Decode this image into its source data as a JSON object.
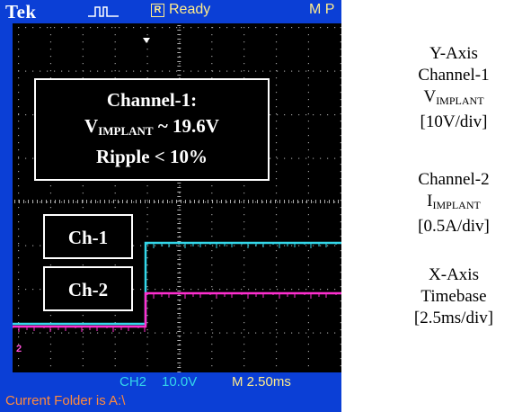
{
  "scope": {
    "brand": "Tek",
    "status": "Ready",
    "status_icon": "R",
    "position_label": "M P",
    "channel_readout": "CH2",
    "channel_scale": "10.0V",
    "timebase": "M 2.50ms",
    "folder": "Current Folder is A:\\",
    "ground_marker": "2",
    "colors": {
      "frame": "#0b3fd6",
      "ch1": "#33d7ea",
      "ch2": "#ff2fd0",
      "status": "#ffeb8c",
      "folder": "#ff8a3d"
    }
  },
  "annotations": {
    "main": {
      "line1": "Channel-1:",
      "line2_v": "V",
      "line2_sub": "IMPLANT",
      "line2_rest": " ~ 19.6V",
      "line3": "Ripple  < 10%"
    },
    "ch1_label": "Ch-1",
    "ch2_label": "Ch-2"
  },
  "caption": {
    "yaxis_title": "Y-Axis",
    "ch1_title": "Channel-1",
    "ch1_var": "V",
    "ch1_var_sub": "IMPLANT",
    "ch1_scale": "[10V/div]",
    "ch2_title": "Channel-2",
    "ch2_var": "I",
    "ch2_var_sub": "IMPLANT",
    "ch2_scale": "[0.5A/div]",
    "xaxis_title": "X-Axis",
    "timebase_title": "Timebase",
    "timebase_scale": "[2.5ms/div]"
  }
}
